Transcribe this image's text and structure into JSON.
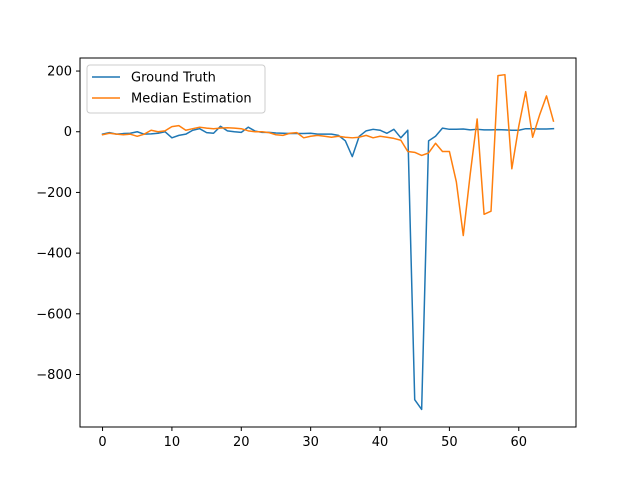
{
  "chart_data": {
    "type": "line",
    "title": "",
    "xlabel": "",
    "ylabel": "",
    "xlim": [
      -3.25,
      68.25
    ],
    "ylim": [
      -973,
      243
    ],
    "xticks": [
      0,
      10,
      20,
      30,
      40,
      50,
      60
    ],
    "xtick_labels": [
      "0",
      "10",
      "20",
      "30",
      "40",
      "50",
      "60"
    ],
    "yticks": [
      200,
      0,
      -200,
      -400,
      -600,
      -800
    ],
    "ytick_labels": [
      "200",
      "0",
      "−200",
      "−400",
      "−600",
      "−800"
    ],
    "grid": false,
    "legend_position": "upper-left",
    "x": [
      0,
      1,
      2,
      3,
      4,
      5,
      6,
      7,
      8,
      9,
      10,
      11,
      12,
      13,
      14,
      15,
      16,
      17,
      18,
      19,
      20,
      21,
      22,
      23,
      24,
      25,
      26,
      27,
      28,
      29,
      30,
      31,
      32,
      33,
      34,
      35,
      36,
      37,
      38,
      39,
      40,
      41,
      42,
      43,
      44,
      45,
      46,
      47,
      48,
      49,
      50,
      51,
      52,
      53,
      54,
      55,
      56,
      57,
      58,
      59,
      60,
      61,
      62,
      63,
      64,
      65
    ],
    "series": [
      {
        "name": "Ground Truth",
        "color": "#1f77b4",
        "values": [
          -8,
          -3,
          -8,
          -6,
          -5,
          0,
          -8,
          -7,
          -5,
          0,
          -20,
          -12,
          -8,
          5,
          10,
          -3,
          -5,
          18,
          3,
          0,
          -2,
          15,
          2,
          -2,
          -2,
          -4,
          -5,
          -6,
          -6,
          -6,
          -5,
          -8,
          -8,
          -8,
          -12,
          -30,
          -82,
          -15,
          3,
          8,
          5,
          -5,
          8,
          -20,
          5,
          -883,
          -915,
          -30,
          -15,
          12,
          8,
          8,
          9,
          6,
          8,
          6,
          6,
          7,
          6,
          5,
          5,
          10,
          10,
          9,
          9,
          10
        ],
        "end_y_label": "10"
      },
      {
        "name": "Median Estimation",
        "color": "#ff7f0e",
        "values": [
          -10,
          -5,
          -8,
          -10,
          -8,
          -15,
          -8,
          5,
          0,
          3,
          17,
          20,
          5,
          10,
          15,
          12,
          10,
          12,
          13,
          12,
          10,
          3,
          0,
          0,
          -3,
          -10,
          -12,
          -5,
          -3,
          -20,
          -15,
          -12,
          -15,
          -18,
          -15,
          -18,
          -20,
          -18,
          -12,
          -20,
          -15,
          -18,
          -22,
          -28,
          -65,
          -68,
          -78,
          -70,
          -38,
          -65,
          -65,
          -165,
          -342,
          -140,
          42,
          -272,
          -262,
          185,
          188,
          -122,
          18,
          132,
          -18,
          55,
          118,
          35
        ]
      }
    ]
  }
}
